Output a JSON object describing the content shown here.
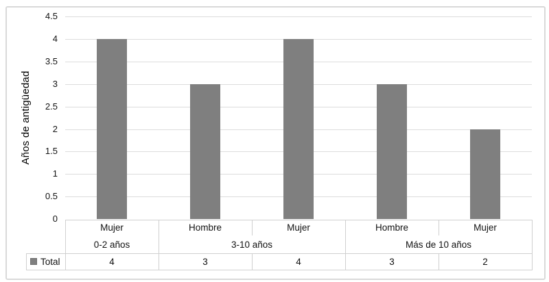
{
  "chart_data": {
    "type": "bar",
    "ylabel": "Años de antigüedad",
    "xlabel": "",
    "ylim": [
      0,
      4.5
    ],
    "yticks": [
      0,
      0.5,
      1,
      1.5,
      2,
      2.5,
      3,
      3.5,
      4,
      4.5
    ],
    "ytick_labels": [
      "0",
      "0.5",
      "1",
      "1.5",
      "2",
      "2.5",
      "3",
      "3.5",
      "4",
      "4.5"
    ],
    "grid": true,
    "legend_position": "bottom-table-left",
    "data_table_shown": true,
    "categories": [
      "Mujer",
      "Hombre",
      "Mujer",
      "Hombre",
      "Mujer"
    ],
    "category_groups": [
      {
        "label": "0-2 años",
        "span": 1
      },
      {
        "label": "3-10 años",
        "span": 2
      },
      {
        "label": "Más de 10 años",
        "span": 2
      }
    ],
    "series": [
      {
        "name": "Total",
        "color": "#7f7f7f",
        "values": [
          4,
          3,
          4,
          3,
          2
        ]
      }
    ]
  },
  "legend": {
    "label": "Total",
    "swatch_color": "#7f7f7f"
  },
  "colors": {
    "bar": "#7f7f7f",
    "gridline": "#dcdcdc",
    "table_border": "#d0d0d0",
    "frame_border": "#d9d9d9",
    "text": "#111111",
    "background": "#ffffff"
  }
}
